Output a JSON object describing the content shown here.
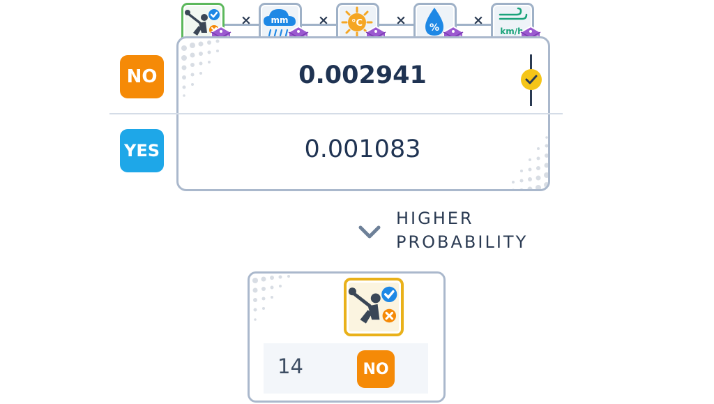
{
  "features": [
    {
      "name": "golf-play-icon",
      "label": ""
    },
    {
      "name": "rain-icon",
      "label": "mm"
    },
    {
      "name": "temperature-icon",
      "label": "°C"
    },
    {
      "name": "humidity-icon",
      "label": "%"
    },
    {
      "name": "wind-icon",
      "label": "km/h"
    }
  ],
  "multiply_symbol": "×",
  "table": {
    "rows": [
      {
        "class_label": "NO",
        "probability": "0.002941",
        "color": "#f58a07",
        "selected": true
      },
      {
        "class_label": "YES",
        "probability": "0.001083",
        "color": "#1ea7e8",
        "selected": false
      }
    ]
  },
  "comparison": {
    "line1": "HIGHER",
    "line2": "PROBABILITY"
  },
  "result": {
    "day": "14",
    "prediction": "NO",
    "prediction_color": "#f58a07"
  },
  "colors": {
    "border": "#aab8cc",
    "text": "#1f3352",
    "accent_check": "#f5c518",
    "dice": "#9b59d0"
  }
}
